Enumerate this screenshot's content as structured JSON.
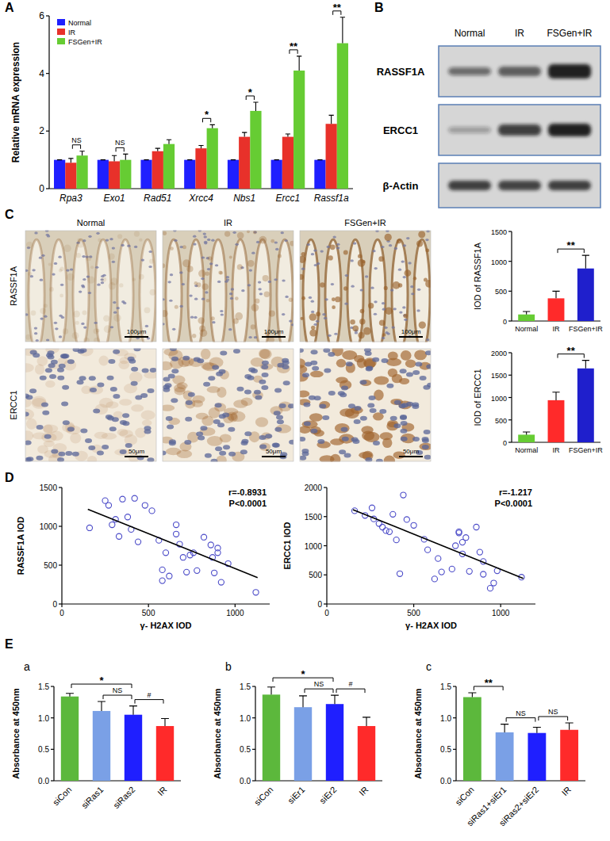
{
  "panel_labels": [
    "A",
    "B",
    "C",
    "D",
    "E"
  ],
  "blot": {
    "lanes": [
      "Normal",
      "IR",
      "FSGen+IR"
    ],
    "bands": [
      "RASSF1A",
      "ERCC1",
      "β-Actin"
    ]
  },
  "ihc": {
    "columns": [
      "Normal",
      "IR",
      "FSGen+IR"
    ],
    "rows": [
      {
        "label": "RASSF1A",
        "scale_bar": "100μm"
      },
      {
        "label": "ERCC1",
        "scale_bar": "50μm"
      }
    ]
  },
  "chart_data": [
    {
      "type": "bar",
      "y_label": "Relative mRNA expression",
      "categories": [
        "Rpa3",
        "Exo1",
        "Rad51",
        "Xrcc4",
        "Nbs1",
        "Ercc1",
        "Rassf1a"
      ],
      "series": [
        {
          "name": "Normal",
          "color": "#1f1fff",
          "values": [
            1,
            1,
            1,
            1,
            1,
            1,
            1
          ],
          "errors": [
            0,
            0,
            0,
            0,
            0,
            0,
            0
          ]
        },
        {
          "name": "IR",
          "color": "#e8312a",
          "values": [
            0.9,
            0.95,
            1.3,
            1.4,
            1.8,
            1.8,
            2.25
          ],
          "errors": [
            0.15,
            0.2,
            0.1,
            0.1,
            0.15,
            0.1,
            0.3
          ]
        },
        {
          "name": "FSGen+IR",
          "color": "#66cc33",
          "values": [
            1.15,
            1.0,
            1.55,
            2.1,
            2.7,
            4.1,
            5.05
          ],
          "errors": [
            0.15,
            0.2,
            0.15,
            0.12,
            0.3,
            0.5,
            0.9
          ]
        }
      ],
      "ylim": [
        0,
        6
      ],
      "yticks": [
        0,
        2,
        4,
        6
      ],
      "legend": "upper left",
      "annotations": [
        {
          "label": "NS",
          "category": "Rpa3",
          "between": [
            "IR",
            "FSGen+IR"
          ]
        },
        {
          "label": "NS",
          "category": "Exo1",
          "between": [
            "IR",
            "FSGen+IR"
          ]
        },
        {
          "label": "*",
          "category": "Xrcc4",
          "between": [
            "IR",
            "FSGen+IR"
          ]
        },
        {
          "label": "*",
          "category": "Nbs1",
          "between": [
            "IR",
            "FSGen+IR"
          ]
        },
        {
          "label": "**",
          "category": "Ercc1",
          "between": [
            "IR",
            "FSGen+IR"
          ]
        },
        {
          "label": "**",
          "category": "Rassf1a",
          "between": [
            "IR",
            "FSGen+IR"
          ]
        }
      ]
    },
    {
      "type": "bar",
      "y_label": "IOD of RASSF1A",
      "categories": [
        "Normal",
        "IR",
        "FSGen+IR"
      ],
      "values": [
        110,
        380,
        880
      ],
      "errors": [
        50,
        120,
        220
      ],
      "colors": [
        "#66cc33",
        "#ff2a2a",
        "#1f1fcc"
      ],
      "ylim": [
        0,
        1500
      ],
      "yticks": [
        0,
        500,
        1000,
        1500
      ],
      "annotations": [
        {
          "label": "**",
          "between": [
            "IR",
            "FSGen+IR"
          ]
        }
      ]
    },
    {
      "type": "bar",
      "y_label": "IOD of ERCC1",
      "categories": [
        "Normal",
        "IR",
        "FSGen+IR"
      ],
      "values": [
        170,
        940,
        1650
      ],
      "errors": [
        60,
        180,
        180
      ],
      "colors": [
        "#66cc33",
        "#ff2a2a",
        "#1f1fcc"
      ],
      "ylim": [
        0,
        2000
      ],
      "yticks": [
        0,
        500,
        1000,
        1500,
        2000
      ],
      "annotations": [
        {
          "label": "**",
          "between": [
            "IR",
            "FSGen+IR"
          ]
        }
      ]
    },
    {
      "type": "scatter",
      "x_label": "γ- H2AX IOD",
      "y_label": "RASSF1A IOD",
      "xlim": [
        0,
        1200
      ],
      "xticks": [
        0,
        500,
        1000
      ],
      "ylim": [
        0,
        1500
      ],
      "yticks": [
        0,
        500,
        1000,
        1500
      ],
      "annotations": [
        "r=-0.8931",
        "P<0.0001"
      ],
      "series": [
        {
          "type": "scatter",
          "marker": "circle",
          "color": "#4b4bc8",
          "x": [
            160,
            250,
            270,
            290,
            310,
            330,
            350,
            380,
            400,
            420,
            440,
            480,
            520,
            560,
            580,
            580,
            600,
            620,
            660,
            660,
            680,
            700,
            720,
            740,
            760,
            780,
            820,
            860,
            870,
            880,
            900,
            900,
            920,
            960,
            1120
          ],
          "values": [
            980,
            1330,
            1270,
            1020,
            1090,
            870,
            1350,
            1120,
            960,
            1360,
            800,
            1270,
            1200,
            820,
            300,
            440,
            660,
            360,
            1020,
            900,
            770,
            600,
            410,
            630,
            660,
            430,
            860,
            760,
            600,
            400,
            720,
            660,
            280,
            520,
            150
          ]
        },
        {
          "type": "line",
          "color": "#000000",
          "x": [
            150,
            1130
          ],
          "values": [
            1220,
            340
          ]
        }
      ]
    },
    {
      "type": "scatter",
      "x_label": "γ- H2AX IOD",
      "y_label": "ERCC1 IOD",
      "xlim": [
        0,
        1200
      ],
      "xticks": [
        0,
        500,
        1000
      ],
      "ylim": [
        0,
        2000
      ],
      "yticks": [
        0,
        500,
        1000,
        1500,
        2000
      ],
      "annotations": [
        "r=-1.217",
        "P<0.0001"
      ],
      "series": [
        {
          "type": "scatter",
          "marker": "circle",
          "color": "#4b4bc8",
          "x": [
            160,
            220,
            260,
            270,
            300,
            320,
            340,
            360,
            380,
            400,
            420,
            440,
            460,
            500,
            560,
            580,
            620,
            640,
            660,
            720,
            740,
            760,
            760,
            780,
            780,
            800,
            820,
            860,
            880,
            900,
            900,
            940,
            960,
            980,
            1120
          ],
          "values": [
            1600,
            1520,
            1650,
            1460,
            1380,
            1320,
            1260,
            1240,
            1540,
            1100,
            520,
            1870,
            1450,
            1350,
            1110,
            930,
            430,
            780,
            550,
            600,
            1000,
            1220,
            1240,
            860,
            1060,
            1140,
            560,
            1320,
            890,
            730,
            510,
            270,
            360,
            570,
            460
          ]
        },
        {
          "type": "line",
          "color": "#000000",
          "x": [
            150,
            1130
          ],
          "values": [
            1620,
            440
          ]
        }
      ]
    },
    {
      "type": "bar",
      "sub_label": "a",
      "y_label": "Absorbance at 450nm",
      "categories": [
        "siCon",
        "siRas1",
        "siRas2",
        "IR"
      ],
      "values": [
        1.34,
        1.11,
        1.05,
        0.87
      ],
      "errors": [
        0.05,
        0.15,
        0.14,
        0.12
      ],
      "colors": [
        "#5cb83c",
        "#7aa0e6",
        "#1f1fff",
        "#ff2a2a"
      ],
      "ylim": [
        0,
        1.5
      ],
      "yticks": [
        {
          "value": 0,
          "label": "0.0"
        },
        0.5,
        {
          "value": 1,
          "label": "1.0"
        },
        1.5
      ],
      "annotations": [
        {
          "label": "*",
          "between": [
            "siCon",
            "siRas2"
          ]
        },
        {
          "label": "NS",
          "between": [
            "siRas1",
            "siRas2"
          ]
        },
        {
          "label": "#",
          "between": [
            "siRas2",
            "IR"
          ]
        }
      ]
    },
    {
      "type": "bar",
      "sub_label": "b",
      "y_label": "Absorbance at 450nm",
      "categories": [
        "siCon",
        "siEr1",
        "siEr2",
        "IR"
      ],
      "values": [
        1.37,
        1.17,
        1.22,
        0.87
      ],
      "errors": [
        0.12,
        0.18,
        0.14,
        0.14
      ],
      "colors": [
        "#5cb83c",
        "#7aa0e6",
        "#1f1fff",
        "#ff2a2a"
      ],
      "ylim": [
        0,
        1.5
      ],
      "yticks": [
        {
          "value": 0,
          "label": "0.0"
        },
        0.5,
        {
          "value": 1,
          "label": "1.0"
        },
        1.5
      ],
      "annotations": [
        {
          "label": "*",
          "between": [
            "siCon",
            "siEr2"
          ]
        },
        {
          "label": "NS",
          "between": [
            "siEr1",
            "siEr2"
          ]
        },
        {
          "label": "#",
          "between": [
            "siEr2",
            "IR"
          ]
        }
      ]
    },
    {
      "type": "bar",
      "sub_label": "c",
      "y_label": "Absorbance at 450nm",
      "categories": [
        "siCon",
        "siRas1+siEr1",
        "siRas2+siEr2",
        "IR"
      ],
      "values": [
        1.33,
        0.77,
        0.76,
        0.81
      ],
      "errors": [
        0.07,
        0.13,
        0.09,
        0.11
      ],
      "colors": [
        "#5cb83c",
        "#7aa0e6",
        "#1f1fff",
        "#ff2a2a"
      ],
      "ylim": [
        0,
        1.5
      ],
      "yticks": [
        {
          "value": 0,
          "label": "0.0"
        },
        0.5,
        {
          "value": 1,
          "label": "1.0"
        },
        1.5
      ],
      "annotations": [
        {
          "label": "**",
          "between": [
            "siCon",
            "siRas1+siEr1"
          ]
        },
        {
          "label": "NS",
          "between": [
            "siRas1+siEr1",
            "siRas2+siEr2"
          ]
        },
        {
          "label": "NS",
          "between": [
            "siRas2+siEr2",
            "IR"
          ]
        }
      ]
    }
  ]
}
